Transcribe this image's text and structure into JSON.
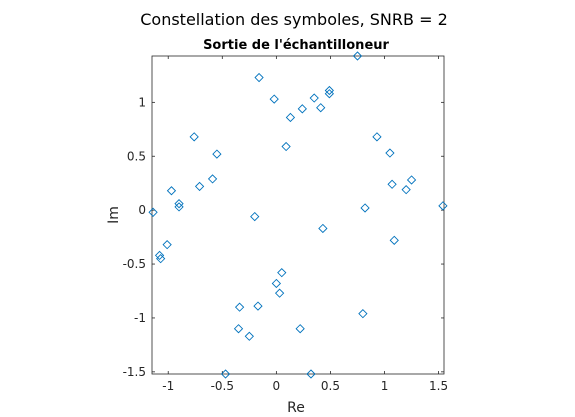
{
  "chart_data": {
    "type": "scatter",
    "title": "Constellation des symboles, SNRB = 2",
    "subtitle": "Sortie de l'échantilloneur",
    "xlabel": "Re",
    "ylabel": "Im",
    "xlim": [
      -1.15,
      1.55
    ],
    "ylim": [
      -1.52,
      1.43
    ],
    "xticks": [
      -1,
      -0.5,
      0,
      0.5,
      1,
      1.5
    ],
    "xtick_labels": [
      "-1",
      "-0.5",
      "0",
      "0.5",
      "1",
      "1.5"
    ],
    "yticks": [
      -1.5,
      -1,
      -0.5,
      0,
      0.5,
      1
    ],
    "ytick_labels": [
      "-1.5",
      "-1",
      "-0.5",
      "0",
      "0.5",
      "1"
    ],
    "grid": false,
    "marker": "diamond",
    "marker_color": "#0072bd",
    "points": [
      {
        "x": -1.14,
        "y": -0.02
      },
      {
        "x": -1.08,
        "y": -0.42
      },
      {
        "x": -1.07,
        "y": -0.45
      },
      {
        "x": -1.01,
        "y": -0.32
      },
      {
        "x": -0.97,
        "y": 0.18
      },
      {
        "x": -0.9,
        "y": 0.06
      },
      {
        "x": -0.9,
        "y": 0.03
      },
      {
        "x": -0.76,
        "y": 0.68
      },
      {
        "x": -0.71,
        "y": 0.22
      },
      {
        "x": -0.59,
        "y": 0.29
      },
      {
        "x": -0.55,
        "y": 0.52
      },
      {
        "x": -0.47,
        "y": -1.52
      },
      {
        "x": -0.35,
        "y": -1.1
      },
      {
        "x": -0.34,
        "y": -0.9
      },
      {
        "x": -0.25,
        "y": -1.17
      },
      {
        "x": -0.2,
        "y": -0.06
      },
      {
        "x": -0.17,
        "y": -0.89
      },
      {
        "x": -0.16,
        "y": 1.23
      },
      {
        "x": -0.02,
        "y": 1.03
      },
      {
        "x": 0.0,
        "y": -0.68
      },
      {
        "x": 0.03,
        "y": -0.77
      },
      {
        "x": 0.05,
        "y": -0.58
      },
      {
        "x": 0.09,
        "y": 0.59
      },
      {
        "x": 0.13,
        "y": 0.86
      },
      {
        "x": 0.22,
        "y": -1.1
      },
      {
        "x": 0.24,
        "y": 0.94
      },
      {
        "x": 0.32,
        "y": -1.52
      },
      {
        "x": 0.35,
        "y": 1.04
      },
      {
        "x": 0.41,
        "y": 0.95
      },
      {
        "x": 0.43,
        "y": -0.17
      },
      {
        "x": 0.49,
        "y": 1.08
      },
      {
        "x": 0.49,
        "y": 1.11
      },
      {
        "x": 0.75,
        "y": 1.43
      },
      {
        "x": 0.8,
        "y": -0.96
      },
      {
        "x": 0.82,
        "y": 0.02
      },
      {
        "x": 0.93,
        "y": 0.68
      },
      {
        "x": 1.05,
        "y": 0.53
      },
      {
        "x": 1.07,
        "y": 0.24
      },
      {
        "x": 1.09,
        "y": -0.28
      },
      {
        "x": 1.2,
        "y": 0.19
      },
      {
        "x": 1.25,
        "y": 0.28
      },
      {
        "x": 1.54,
        "y": 0.04
      }
    ]
  }
}
